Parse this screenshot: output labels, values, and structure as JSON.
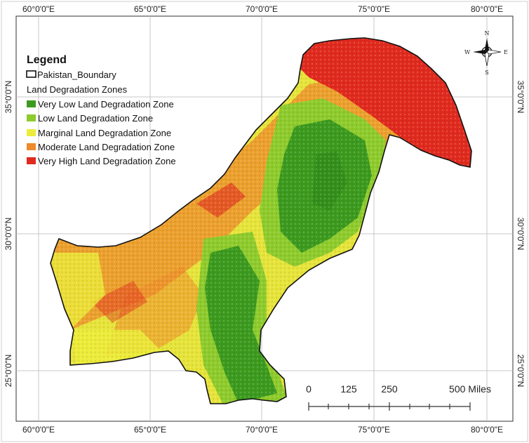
{
  "coordinates": {
    "top": [
      "60°0'0\"E",
      "65°0'0\"E",
      "70°0'0\"E",
      "75°0'0\"E",
      "80°0'0\"E"
    ],
    "bottom": [
      "60°0'0\"E",
      "65°0'0\"E",
      "70°0'0\"E",
      "75°0'0\"E",
      "80°0'0\"E"
    ],
    "left": [
      "35°0'0\"N",
      "30°0'0\"N",
      "25°0'0\"N"
    ],
    "right": [
      "35°0'0\"N",
      "30°0'0\"N",
      "25°0'0\"N"
    ]
  },
  "legend": {
    "title": "Legend",
    "boundary_label": "Pakistan_Boundary",
    "zones_heading": "Land Degradation Zones",
    "items": [
      {
        "label": "Very Low Land Degradation Zone",
        "color": "#3c9a1e"
      },
      {
        "label": "Low Land Degradation Zone",
        "color": "#8ecb2c"
      },
      {
        "label": "Marginal Land Degradation Zone",
        "color": "#ecec3a"
      },
      {
        "label": "Moderate Land Degradation Zone",
        "color": "#ee8a2a"
      },
      {
        "label": "Very High Land Degradation Zone",
        "color": "#e02a1e"
      }
    ]
  },
  "compass": {
    "n": "N",
    "s": "S",
    "e": "E",
    "w": "W"
  },
  "scale_bar": {
    "labels": [
      "0",
      "125",
      "250",
      "500 Miles"
    ]
  }
}
